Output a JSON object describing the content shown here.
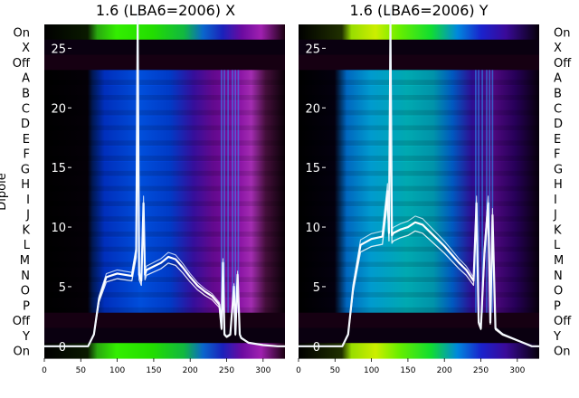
{
  "chart_data": [
    {
      "type": "heatmap",
      "title": "1.6 (LBA6=2006) X",
      "ylabel": "Dipole",
      "xlim": [
        0,
        330
      ],
      "ylim": [
        -1,
        27
      ],
      "xticks": [
        0,
        50,
        100,
        150,
        200,
        250,
        300
      ],
      "yticks": [
        0,
        5,
        10,
        15,
        20,
        25
      ],
      "row_labels": [
        "On",
        "X",
        "Off",
        "A",
        "B",
        "C",
        "D",
        "E",
        "F",
        "G",
        "H",
        "I",
        "J",
        "K",
        "L",
        "M",
        "N",
        "O",
        "P",
        "Off",
        "Y",
        "On"
      ],
      "overlay": {
        "type": "line",
        "x": [
          0,
          60,
          68,
          75,
          85,
          100,
          120,
          126,
          128,
          130,
          133,
          136,
          138,
          140,
          150,
          160,
          170,
          180,
          190,
          200,
          210,
          220,
          230,
          240,
          243,
          245,
          247,
          250,
          255,
          260,
          262,
          265,
          268,
          270,
          280,
          300,
          320,
          330
        ],
        "y": [
          0,
          0,
          1,
          4,
          5.8,
          6.1,
          5.9,
          8,
          27,
          6,
          5.5,
          12,
          6,
          6.4,
          6.7,
          7,
          7.5,
          7.3,
          6.6,
          5.8,
          5.1,
          4.6,
          4.2,
          3.5,
          1.5,
          7,
          1,
          0.8,
          1,
          5,
          1,
          6,
          1,
          0.7,
          0.3,
          0.1,
          0,
          0
        ]
      }
    },
    {
      "type": "heatmap",
      "title": "1.6 (LBA6=2006) Y",
      "xlim": [
        0,
        330
      ],
      "ylim": [
        -1,
        27
      ],
      "xticks": [
        0,
        50,
        100,
        150,
        200,
        250,
        300
      ],
      "yticks": [
        0,
        5,
        10,
        15,
        20,
        25
      ],
      "row_labels": [
        "On",
        "X",
        "Off",
        "A",
        "B",
        "C",
        "D",
        "E",
        "F",
        "G",
        "H",
        "I",
        "J",
        "K",
        "L",
        "M",
        "N",
        "O",
        "P",
        "Off",
        "Y",
        "On"
      ],
      "overlay": {
        "type": "line",
        "x": [
          0,
          60,
          68,
          75,
          85,
          100,
          115,
          122,
          124,
          126,
          128,
          130,
          140,
          150,
          160,
          170,
          180,
          190,
          200,
          210,
          220,
          230,
          240,
          244,
          247,
          250,
          255,
          260,
          263,
          266,
          270,
          280,
          300,
          320,
          330
        ],
        "y": [
          0,
          0,
          1,
          5,
          8.5,
          9,
          9.2,
          13,
          9.5,
          27,
          9.3,
          9.5,
          9.8,
          10,
          10.4,
          10.2,
          9.6,
          9,
          8.4,
          7.7,
          7,
          6.4,
          5.5,
          12,
          2,
          1.5,
          8,
          12,
          2,
          11,
          1.5,
          1,
          0.5,
          0,
          0
        ]
      }
    }
  ]
}
